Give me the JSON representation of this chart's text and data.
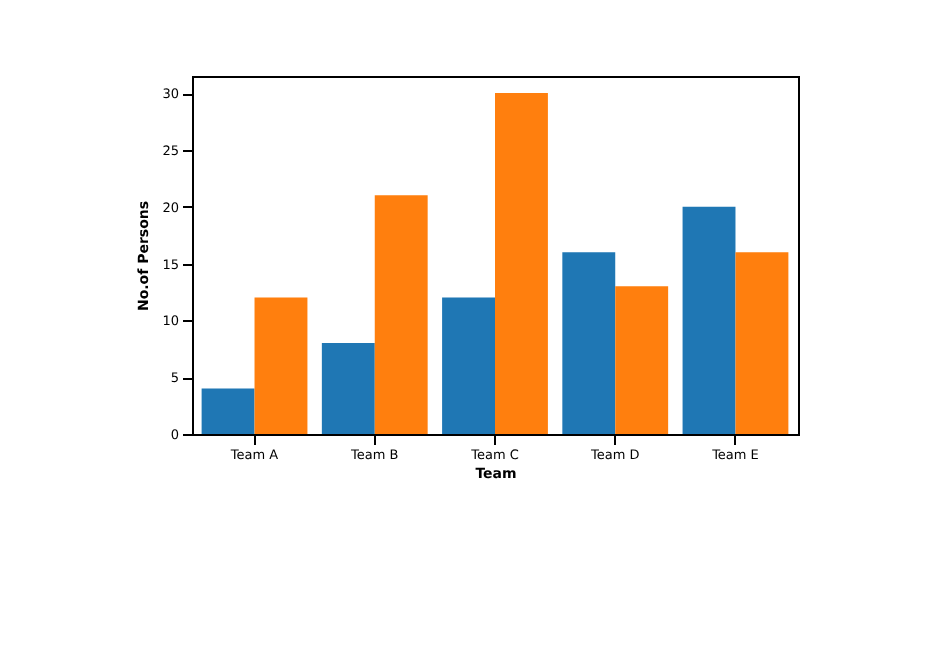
{
  "chart_data": {
    "type": "bar",
    "xlabel": "Team",
    "ylabel": "No.of Persons",
    "categories": [
      "Team A",
      "Team B",
      "Team C",
      "Team D",
      "Team E"
    ],
    "series": [
      {
        "color": "#1f77b4",
        "values": [
          4,
          8,
          12,
          16,
          20
        ]
      },
      {
        "color": "#ff7f0e",
        "values": [
          12,
          21,
          30,
          13,
          16
        ]
      }
    ],
    "ylim": [
      0,
      31.5
    ],
    "yticks": [
      0,
      5,
      10,
      15,
      20,
      25,
      30
    ],
    "grid": false,
    "legend": false
  }
}
